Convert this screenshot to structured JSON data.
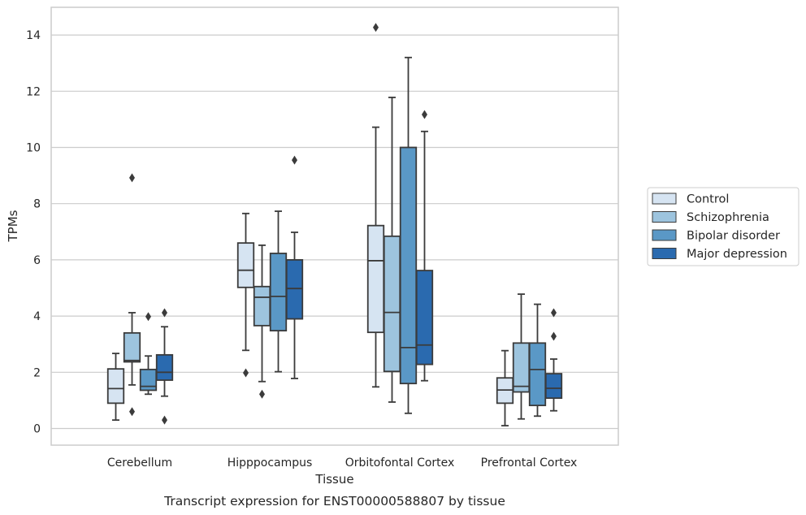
{
  "chart_data": {
    "type": "box",
    "caption": "Transcript expression for ENST00000588807 by tissue",
    "xlabel": "Tissue",
    "ylabel": "TPMs",
    "ylim": [
      -0.6,
      15
    ],
    "yticks": [
      0,
      2,
      4,
      6,
      8,
      10,
      12,
      14
    ],
    "grid": "horizontal",
    "legend_position": "right",
    "categories": [
      "Cerebellum",
      "Hipppocampus",
      "Orbitofontal Cortex",
      "Prefrontal Cortex"
    ],
    "series": [
      {
        "name": "Control",
        "color": "#d6e4f2",
        "boxes": [
          {
            "whisker_low": 0.3,
            "q1": 0.9,
            "median": 1.42,
            "q3": 2.12,
            "whisker_high": 2.67,
            "outliers": []
          },
          {
            "whisker_low": 2.78,
            "q1": 5.02,
            "median": 5.63,
            "q3": 6.6,
            "whisker_high": 7.65,
            "outliers": [
              1.98
            ]
          },
          {
            "whisker_low": 1.48,
            "q1": 3.42,
            "median": 5.97,
            "q3": 7.22,
            "whisker_high": 10.72,
            "outliers": [
              14.27
            ]
          },
          {
            "whisker_low": 0.1,
            "q1": 0.9,
            "median": 1.37,
            "q3": 1.8,
            "whisker_high": 2.77,
            "outliers": []
          }
        ]
      },
      {
        "name": "Schizophrenia",
        "color": "#9dc4de",
        "boxes": [
          {
            "whisker_low": 1.55,
            "q1": 2.37,
            "median": 2.42,
            "q3": 3.4,
            "whisker_high": 4.12,
            "outliers": [
              8.92,
              0.6
            ]
          },
          {
            "whisker_low": 1.67,
            "q1": 3.66,
            "median": 4.67,
            "q3": 5.05,
            "whisker_high": 6.52,
            "outliers": [
              1.22
            ]
          },
          {
            "whisker_low": 0.94,
            "q1": 2.03,
            "median": 4.13,
            "q3": 6.84,
            "whisker_high": 11.78,
            "outliers": []
          },
          {
            "whisker_low": 0.34,
            "q1": 1.3,
            "median": 1.5,
            "q3": 3.04,
            "whisker_high": 4.78,
            "outliers": []
          }
        ]
      },
      {
        "name": "Bipolar disorder",
        "color": "#5a98c6",
        "boxes": [
          {
            "whisker_low": 1.22,
            "q1": 1.36,
            "median": 1.5,
            "q3": 2.1,
            "whisker_high": 2.58,
            "outliers": [
              3.98
            ]
          },
          {
            "whisker_low": 2.02,
            "q1": 3.48,
            "median": 4.7,
            "q3": 6.23,
            "whisker_high": 7.73,
            "outliers": []
          },
          {
            "whisker_low": 0.54,
            "q1": 1.6,
            "median": 2.88,
            "q3": 10.0,
            "whisker_high": 13.2,
            "outliers": []
          },
          {
            "whisker_low": 0.44,
            "q1": 0.82,
            "median": 2.1,
            "q3": 3.04,
            "whisker_high": 4.42,
            "outliers": []
          }
        ]
      },
      {
        "name": "Major depression",
        "color": "#2a6aaf",
        "boxes": [
          {
            "whisker_low": 1.15,
            "q1": 1.72,
            "median": 2.0,
            "q3": 2.62,
            "whisker_high": 3.62,
            "outliers": [
              4.12,
              0.3
            ]
          },
          {
            "whisker_low": 1.78,
            "q1": 3.9,
            "median": 4.98,
            "q3": 6.0,
            "whisker_high": 6.98,
            "outliers": [
              9.55
            ]
          },
          {
            "whisker_low": 1.7,
            "q1": 2.28,
            "median": 2.97,
            "q3": 5.62,
            "whisker_high": 10.57,
            "outliers": [
              11.17
            ]
          },
          {
            "whisker_low": 0.63,
            "q1": 1.08,
            "median": 1.43,
            "q3": 1.95,
            "whisker_high": 2.47,
            "outliers": [
              4.12,
              3.28
            ]
          }
        ]
      }
    ]
  }
}
